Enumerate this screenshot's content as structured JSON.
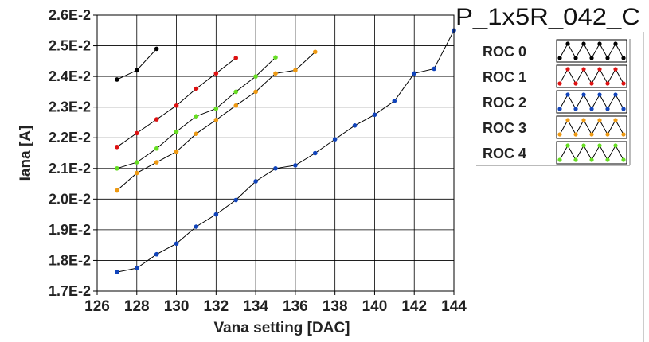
{
  "chart_data": {
    "type": "line",
    "title": "P_1x5R_042_C",
    "xlabel": "Vana setting [DAC]",
    "ylabel": "Iana [A]",
    "xlim": [
      126,
      144
    ],
    "ylim": [
      0.017,
      0.026
    ],
    "xticks": [
      126,
      128,
      130,
      132,
      134,
      136,
      138,
      140,
      142,
      144
    ],
    "xtick_labels": [
      "126",
      "128",
      "130",
      "132",
      "134",
      "136",
      "138",
      "140",
      "142",
      "144"
    ],
    "yticks": [
      0.017,
      0.018,
      0.019,
      0.02,
      0.021,
      0.022,
      0.023,
      0.024,
      0.025,
      0.026
    ],
    "ytick_labels": [
      "1.7E-2",
      "1.8E-2",
      "1.9E-2",
      "2.0E-2",
      "2.1E-2",
      "2.2E-2",
      "2.3E-2",
      "2.4E-2",
      "2.5E-2",
      "2.6E-2"
    ],
    "grid": true,
    "legend_position": "right",
    "series": [
      {
        "name": "ROC 0",
        "color": "#000000",
        "x": [
          127,
          128,
          129
        ],
        "y": [
          0.0239,
          0.0242,
          0.0249
        ]
      },
      {
        "name": "ROC 1",
        "color": "#dd1111",
        "x": [
          127,
          128,
          129,
          130,
          131,
          132,
          133
        ],
        "y": [
          0.0217,
          0.02215,
          0.0226,
          0.02305,
          0.0236,
          0.0241,
          0.0246
        ]
      },
      {
        "name": "ROC 2",
        "color": "#1144bb",
        "x": [
          127,
          128,
          129,
          130,
          131,
          132,
          133,
          134,
          135,
          136,
          137,
          138,
          139,
          140,
          141,
          142,
          143,
          144
        ],
        "y": [
          0.01762,
          0.01775,
          0.0182,
          0.01855,
          0.0191,
          0.0195,
          0.01997,
          0.02058,
          0.021,
          0.0211,
          0.0215,
          0.02195,
          0.0224,
          0.02275,
          0.0232,
          0.0241,
          0.02425,
          0.0255
        ]
      },
      {
        "name": "ROC 3",
        "color": "#ee9911",
        "x": [
          127,
          128,
          129,
          130,
          131,
          132,
          133,
          134,
          135,
          136,
          137
        ],
        "y": [
          0.02028,
          0.02085,
          0.0212,
          0.02155,
          0.02213,
          0.02258,
          0.02305,
          0.0235,
          0.0241,
          0.0242,
          0.0248
        ]
      },
      {
        "name": "ROC 4",
        "color": "#66dd22",
        "x": [
          127,
          128,
          129,
          130,
          131,
          132,
          133,
          134,
          135
        ],
        "y": [
          0.021,
          0.0212,
          0.02165,
          0.0222,
          0.0227,
          0.02295,
          0.0235,
          0.024,
          0.02462
        ]
      }
    ]
  }
}
